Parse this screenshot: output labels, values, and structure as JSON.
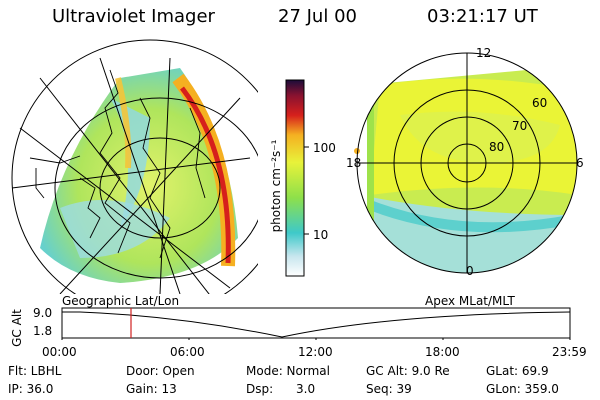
{
  "header": {
    "title": "Ultraviolet Imager",
    "date": "27 Jul 00",
    "time": "03:21:17 UT"
  },
  "left_panel": {
    "label": "Geographic Lat/Lon"
  },
  "right_panel": {
    "label": "Apex MLat/MLT",
    "hour_labels": {
      "top": "12",
      "left": "18",
      "right": "6",
      "bottom": "0"
    },
    "lat_labels": [
      "60",
      "70",
      "80"
    ]
  },
  "colorbar": {
    "unit_label": "photon cm⁻²s⁻¹",
    "ticks": [
      "100",
      "10"
    ],
    "colors": [
      "#ffffff",
      "#c8e6ee",
      "#3ec9c9",
      "#8ee04a",
      "#e8f23a",
      "#f5b021",
      "#d6201c",
      "#8a1230",
      "#1c0c3a"
    ]
  },
  "timeline": {
    "ylabel": "GC Alt",
    "y_ticks": [
      "9.0",
      "1.8"
    ],
    "x_ticks": [
      "00:00",
      "06:00",
      "12:00",
      "18:00",
      "23:59"
    ],
    "marker_color": "#d02020"
  },
  "info": {
    "row1": [
      "Flt: LBHL",
      "Door: Open",
      "Mode: Normal",
      "GC Alt: 9.0 Re",
      "GLat:  69.9"
    ],
    "row2": [
      "IP: 36.0",
      "Gain: 13",
      "Dsp:      3.0",
      "Seq: 39",
      "GLon: 359.0"
    ]
  }
}
